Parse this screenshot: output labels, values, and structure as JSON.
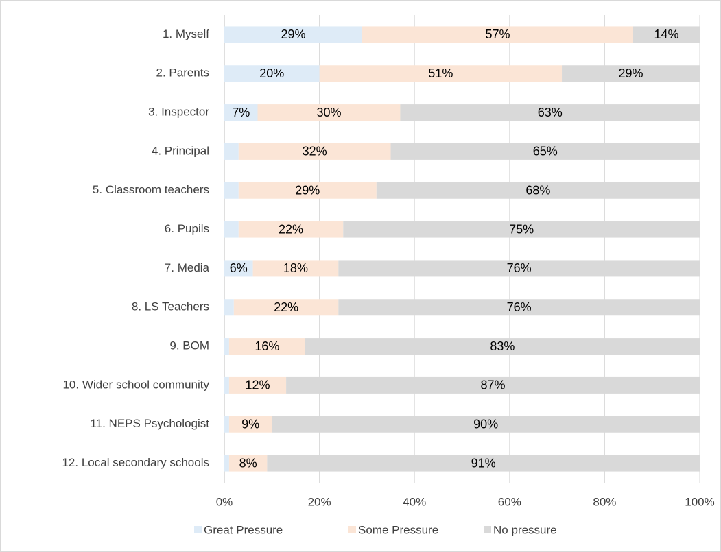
{
  "chart_data": {
    "type": "stacked_barh",
    "categories": [
      "1. Myself",
      "2. Parents",
      "3. Inspector",
      "4. Principal",
      "5. Classroom teachers",
      "6. Pupils",
      "7. Media",
      "8. LS Teachers",
      "9. BOM",
      "10. Wider school community",
      "11. NEPS Psychologist",
      "12. Local secondary schools"
    ],
    "series": [
      {
        "name": "Great Pressure",
        "color": "#deebf7",
        "values": [
          29,
          20,
          7,
          3,
          3,
          3,
          6,
          2,
          1,
          1,
          1,
          1
        ],
        "value_labels": [
          "29%",
          "20%",
          "7%",
          null,
          null,
          null,
          "6%",
          null,
          null,
          null,
          null,
          null
        ]
      },
      {
        "name": "Some Pressure",
        "color": "#fbe5d6",
        "values": [
          57,
          51,
          30,
          32,
          29,
          22,
          18,
          22,
          16,
          12,
          9,
          8
        ],
        "value_labels": [
          "57%",
          "51%",
          "30%",
          "32%",
          "29%",
          "22%",
          "18%",
          "22%",
          "16%",
          "12%",
          "9%",
          "8%"
        ]
      },
      {
        "name": "No pressure",
        "color": "#d9d9d9",
        "values": [
          14,
          29,
          63,
          65,
          68,
          75,
          76,
          76,
          83,
          87,
          90,
          91
        ],
        "value_labels": [
          "14%",
          "29%",
          "63%",
          "65%",
          "68%",
          "75%",
          "76%",
          "76%",
          "83%",
          "87%",
          "90%",
          "91%"
        ]
      }
    ],
    "xlim": [
      0,
      100
    ],
    "xticks": [
      {
        "value": 0,
        "label": "0%"
      },
      {
        "value": 20,
        "label": "20%"
      },
      {
        "value": 40,
        "label": "40%"
      },
      {
        "value": 60,
        "label": "60%"
      },
      {
        "value": 80,
        "label": "80%"
      },
      {
        "value": 100,
        "label": "100%"
      }
    ],
    "grid": true,
    "legend": "bottom"
  }
}
